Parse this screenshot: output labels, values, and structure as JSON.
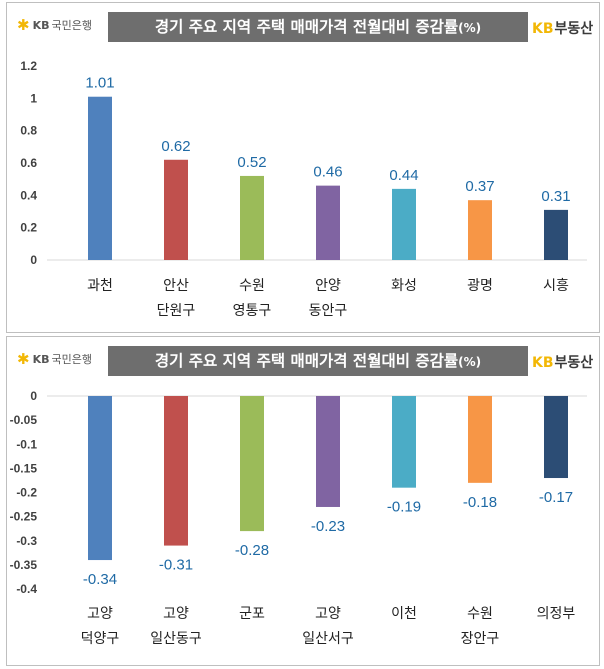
{
  "charts": [
    {
      "id": "top",
      "brand_left": {
        "kb": "KB",
        "name": "국민은행"
      },
      "brand_right": {
        "kb": "KB",
        "name": "부동산"
      },
      "title": "경기 주요 지역 주택 매매가격 전월대비 증감률",
      "title_unit": "(%)"
    },
    {
      "id": "bottom",
      "brand_left": {
        "kb": "KB",
        "name": "국민은행"
      },
      "brand_right": {
        "kb": "KB",
        "name": "부동산"
      },
      "title": "경기 주요 지역 주택 매매가격 전월대비 증감률",
      "title_unit": "(%)"
    }
  ],
  "chart_data": [
    {
      "type": "bar",
      "title": "경기 주요 지역 주택 매매가격 전월대비 증감률(%)",
      "categories": [
        [
          "과천"
        ],
        [
          "안산",
          "단원구"
        ],
        [
          "수원",
          "영통구"
        ],
        [
          "안양",
          "동안구"
        ],
        [
          "화성"
        ],
        [
          "광명"
        ],
        [
          "시흥"
        ]
      ],
      "values": [
        1.01,
        0.62,
        0.52,
        0.46,
        0.44,
        0.37,
        0.31
      ],
      "value_labels": [
        "1.01",
        "0.62",
        "0.52",
        "0.46",
        "0.44",
        "0.37",
        "0.31"
      ],
      "colors": [
        "#4f81bd",
        "#c0504d",
        "#9bbb59",
        "#8064a2",
        "#4bacc6",
        "#f79646",
        "#2c4d75"
      ],
      "yticks": [
        "0",
        "0.2",
        "0.4",
        "0.6",
        "0.8",
        "1",
        "1.2"
      ],
      "ylim": [
        0,
        1.2
      ],
      "grid": false,
      "legend": "none"
    },
    {
      "type": "bar",
      "title": "경기 주요 지역 주택 매매가격 전월대비 증감률(%)",
      "categories": [
        [
          "고양",
          "덕양구"
        ],
        [
          "고양",
          "일산동구"
        ],
        [
          "군포"
        ],
        [
          "고양",
          "일산서구"
        ],
        [
          "이천"
        ],
        [
          "수원",
          "장안구"
        ],
        [
          "의정부"
        ]
      ],
      "values": [
        -0.34,
        -0.31,
        -0.28,
        -0.23,
        -0.19,
        -0.18,
        -0.17
      ],
      "value_labels": [
        "-0.34",
        "-0.31",
        "-0.28",
        "-0.23",
        "-0.19",
        "-0.18",
        "-0.17"
      ],
      "colors": [
        "#4f81bd",
        "#c0504d",
        "#9bbb59",
        "#8064a2",
        "#4bacc6",
        "#f79646",
        "#2c4d75"
      ],
      "yticks": [
        "0",
        "-0.05",
        "-0.1",
        "-0.15",
        "-0.2",
        "-0.25",
        "-0.3",
        "-0.35",
        "-0.4"
      ],
      "ylim": [
        -0.4,
        0
      ],
      "grid": false,
      "legend": "none"
    }
  ]
}
